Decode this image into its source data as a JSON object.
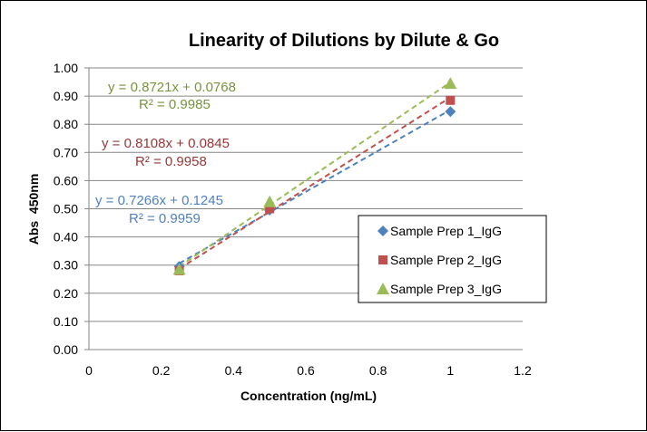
{
  "chart_data": {
    "type": "scatter",
    "title": "Linearity of Dilutions by Dilute & Go",
    "xlabel": "Concentration (ng/mL)",
    "ylabel": "Abs  450nm",
    "xlim": [
      0,
      1.2
    ],
    "ylim": [
      0,
      1.0
    ],
    "x_ticks": [
      "0",
      "0.2",
      "0.4",
      "0.6",
      "0.8",
      "1",
      "1.2"
    ],
    "x_tick_values": [
      0,
      0.2,
      0.4,
      0.6,
      0.8,
      1.0,
      1.2
    ],
    "y_ticks": [
      "0.00",
      "0.10",
      "0.20",
      "0.30",
      "0.40",
      "0.50",
      "0.60",
      "0.70",
      "0.80",
      "0.90",
      "1.00"
    ],
    "y_tick_values": [
      0,
      0.1,
      0.2,
      0.3,
      0.4,
      0.5,
      0.6,
      0.7,
      0.8,
      0.9,
      1.0
    ],
    "grid": "horizontal",
    "legend_position": "right-middle",
    "series": [
      {
        "name": "Sample Prep 1_IgG",
        "marker": "diamond",
        "color": "#4f81bd",
        "x": [
          0.25,
          0.5,
          1.0
        ],
        "y": [
          0.295,
          0.495,
          0.845
        ],
        "trendline": {
          "slope": 0.7266,
          "intercept": 0.1245,
          "equation": "y = 0.7266x + 0.1245",
          "r2": "R² = 0.9959"
        }
      },
      {
        "name": "Sample Prep 2_IgG",
        "marker": "square",
        "color": "#c0504d",
        "x": [
          0.25,
          0.5,
          1.0
        ],
        "y": [
          0.28,
          0.5,
          0.885
        ],
        "trendline": {
          "slope": 0.8108,
          "intercept": 0.0845,
          "equation": "y = 0.8108x + 0.0845",
          "r2": "R² = 0.9958"
        }
      },
      {
        "name": "Sample Prep 3_IgG",
        "marker": "triangle",
        "color": "#9bbb59",
        "x": [
          0.25,
          0.5,
          1.0
        ],
        "y": [
          0.285,
          0.525,
          0.945
        ],
        "trendline": {
          "slope": 0.8721,
          "intercept": 0.0768,
          "equation": "y = 0.8721x + 0.0768",
          "r2": "R² = 0.9985"
        }
      }
    ],
    "equation_colors": {
      "series1": "#4f81bd",
      "series2": "#953735",
      "series3": "#77933c"
    }
  }
}
